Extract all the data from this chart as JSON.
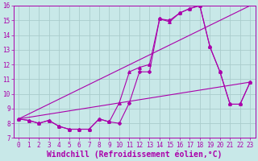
{
  "xlabel": "Windchill (Refroidissement éolien,°C)",
  "xlim": [
    -0.5,
    23.5
  ],
  "ylim": [
    7,
    16
  ],
  "xticks": [
    0,
    1,
    2,
    3,
    4,
    5,
    6,
    7,
    8,
    9,
    10,
    11,
    12,
    13,
    14,
    15,
    16,
    17,
    18,
    19,
    20,
    21,
    22,
    23
  ],
  "yticks": [
    7,
    8,
    9,
    10,
    11,
    12,
    13,
    14,
    15,
    16
  ],
  "bg_color": "#c8e8e8",
  "line_color": "#aa00aa",
  "grid_color": "#aacccc",
  "lines": [
    {
      "x": [
        0,
        1,
        2,
        3,
        4,
        5,
        6,
        7,
        8,
        9,
        10,
        11,
        12,
        13,
        14,
        15,
        16,
        17,
        18,
        19,
        20,
        21,
        22,
        23
      ],
      "y": [
        8.3,
        8.2,
        8.0,
        8.2,
        7.8,
        7.6,
        7.6,
        7.6,
        8.3,
        8.1,
        8.0,
        9.4,
        11.5,
        11.5,
        15.1,
        15.0,
        15.5,
        15.8,
        16.0,
        13.2,
        11.5,
        9.3,
        9.3,
        10.8
      ],
      "marker": "D",
      "markersize": 2.0,
      "linestyle": "-"
    },
    {
      "x": [
        0,
        1,
        2,
        3,
        4,
        5,
        6,
        7,
        8,
        9,
        10,
        11,
        12,
        13,
        14,
        15,
        16,
        17,
        18,
        19,
        20,
        21,
        22,
        23
      ],
      "y": [
        8.3,
        8.2,
        8.0,
        8.2,
        7.8,
        7.6,
        7.6,
        7.6,
        8.3,
        8.1,
        9.4,
        11.5,
        11.8,
        12.0,
        15.1,
        14.9,
        15.5,
        15.8,
        16.0,
        13.2,
        11.5,
        9.3,
        9.3,
        10.8
      ],
      "marker": "^",
      "markersize": 2.5,
      "linestyle": "-"
    },
    {
      "x": [
        0,
        23
      ],
      "y": [
        8.3,
        10.8
      ],
      "marker": "None",
      "markersize": 0,
      "linestyle": "-"
    },
    {
      "x": [
        0,
        23
      ],
      "y": [
        8.3,
        16.0
      ],
      "marker": "None",
      "markersize": 0,
      "linestyle": "-"
    }
  ],
  "font_family": "monospace",
  "tick_fontsize": 5.5,
  "label_fontsize": 7.0
}
